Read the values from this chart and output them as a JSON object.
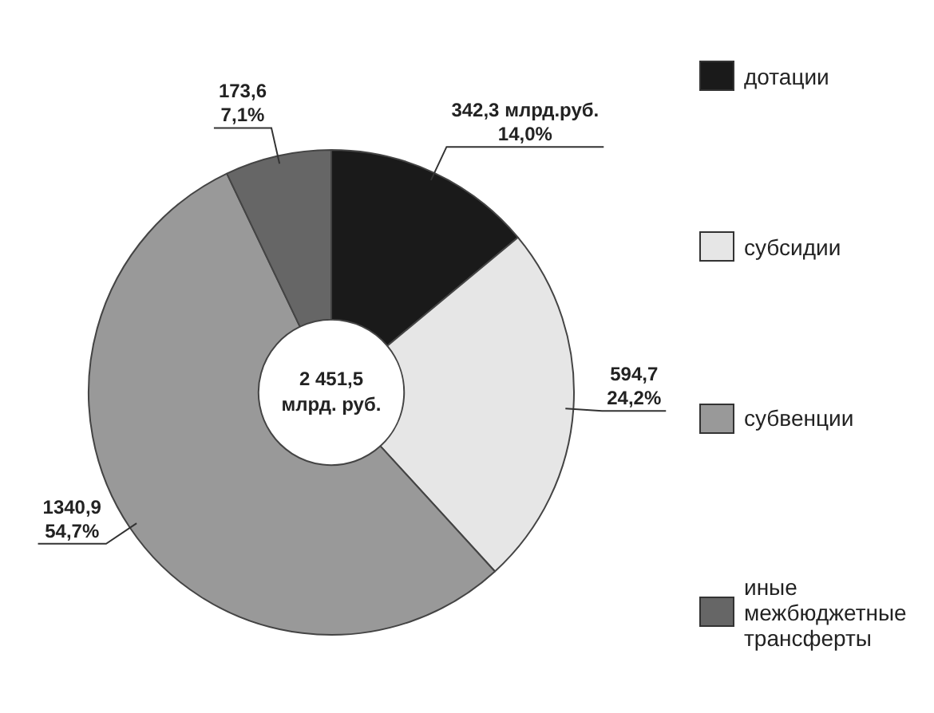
{
  "chart_data": {
    "type": "donut",
    "categories": [
      "дотации",
      "субсидии",
      "субвенции",
      "иные межбюджетные трансферты"
    ],
    "values": [
      342.3,
      594.7,
      1340.9,
      173.6
    ],
    "colors": [
      "#1a1a1a",
      "#e6e6e6",
      "#999999",
      "#666666"
    ],
    "value_labels": [
      "342,3 млрд.руб.\n14,0%",
      "594,7\n24,2%",
      "1340,9\n54,7%",
      "173,6\n7,1%"
    ],
    "annotations": [
      "2 451,5\nмлрд. руб."
    ],
    "legend": "right"
  }
}
